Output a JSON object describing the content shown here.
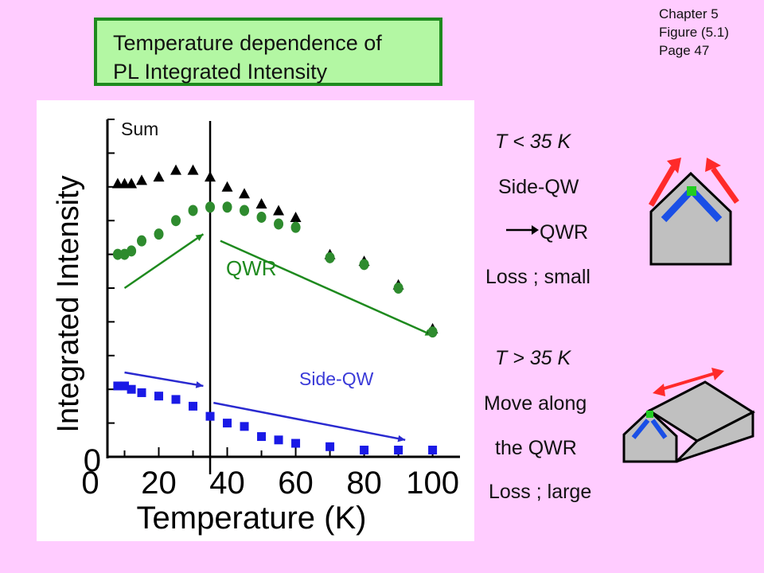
{
  "title": {
    "line1": "Temperature dependence of",
    "line2": "PL Integrated Intensity"
  },
  "chapter": {
    "chapter": "Chapter 5",
    "figure": "Figure (5.1)",
    "page": "Page 47"
  },
  "chart_data": {
    "type": "scatter",
    "xlabel": "Temperature (K)",
    "ylabel": "Integrated Intensity",
    "xlim": [
      5,
      108
    ],
    "ylim": [
      0,
      10
    ],
    "x_ticks": [
      0,
      20,
      40,
      60,
      80,
      100
    ],
    "x_tick_labels": [
      "0",
      "20",
      "40",
      "60",
      "80",
      "100"
    ],
    "y_zero_label": "0",
    "zero_line": "dotted",
    "vline_x": 35,
    "series": [
      {
        "name": "Sum",
        "marker": "triangle",
        "color": "#000000",
        "points": [
          [
            8,
            8.1
          ],
          [
            10,
            8.1
          ],
          [
            12,
            8.1
          ],
          [
            15,
            8.2
          ],
          [
            20,
            8.3
          ],
          [
            25,
            8.5
          ],
          [
            30,
            8.5
          ],
          [
            35,
            8.3
          ],
          [
            40,
            8.0
          ],
          [
            45,
            7.8
          ],
          [
            50,
            7.5
          ],
          [
            55,
            7.3
          ],
          [
            60,
            7.1
          ],
          [
            70,
            6.0
          ],
          [
            80,
            5.8
          ],
          [
            90,
            5.1
          ],
          [
            100,
            3.8
          ]
        ]
      },
      {
        "name": "QWR",
        "marker": "circle",
        "color": "#2e8b2e",
        "points": [
          [
            8,
            6.0
          ],
          [
            10,
            6.0
          ],
          [
            12,
            6.1
          ],
          [
            15,
            6.4
          ],
          [
            20,
            6.6
          ],
          [
            25,
            7.0
          ],
          [
            30,
            7.3
          ],
          [
            35,
            7.4
          ],
          [
            40,
            7.4
          ],
          [
            45,
            7.3
          ],
          [
            50,
            7.1
          ],
          [
            55,
            6.9
          ],
          [
            60,
            6.8
          ],
          [
            70,
            5.9
          ],
          [
            80,
            5.7
          ],
          [
            90,
            5.0
          ],
          [
            100,
            3.7
          ]
        ]
      },
      {
        "name": "Side-QW",
        "marker": "square",
        "color": "#1a1ae6",
        "points": [
          [
            8,
            2.1
          ],
          [
            10,
            2.1
          ],
          [
            12,
            2.0
          ],
          [
            15,
            1.9
          ],
          [
            20,
            1.8
          ],
          [
            25,
            1.7
          ],
          [
            30,
            1.5
          ],
          [
            35,
            1.2
          ],
          [
            40,
            1.0
          ],
          [
            45,
            0.9
          ],
          [
            50,
            0.6
          ],
          [
            55,
            0.5
          ],
          [
            60,
            0.4
          ],
          [
            70,
            0.3
          ],
          [
            80,
            0.2
          ],
          [
            90,
            0.2
          ],
          [
            100,
            0.2
          ]
        ]
      }
    ],
    "annotations": {
      "sum": "Sum",
      "qwr": "QWR",
      "sideqw": "Side-QW"
    },
    "arrows": [
      {
        "color": "#1e8a1e",
        "from": [
          10,
          5.0
        ],
        "to": [
          33,
          6.6
        ]
      },
      {
        "color": "#1e8a1e",
        "from": [
          38,
          6.4
        ],
        "to": [
          100,
          3.6
        ]
      },
      {
        "color": "#2a2ad0",
        "from": [
          10,
          2.5
        ],
        "to": [
          33,
          2.1
        ]
      },
      {
        "color": "#2a2ad0",
        "from": [
          36,
          1.6
        ],
        "to": [
          92,
          0.5
        ]
      }
    ]
  },
  "right": {
    "low_t": "T < 35 K",
    "side_qw": "Side-QW",
    "qwr": "QWR",
    "loss_small": "Loss ; small",
    "high_t": "T > 35 K",
    "move_along": "Move along",
    "the_qwr": "the QWR",
    "loss_large": "Loss ; large"
  },
  "colors": {
    "background": "#ffccff",
    "title_fill": "#b3f7a3",
    "title_border": "#1e8a1e",
    "red_arrow": "#ff2a2a",
    "blue_qw": "#1a4fe6",
    "green_qwr": "#22cc22",
    "house_fill": "#c0c0c0"
  }
}
